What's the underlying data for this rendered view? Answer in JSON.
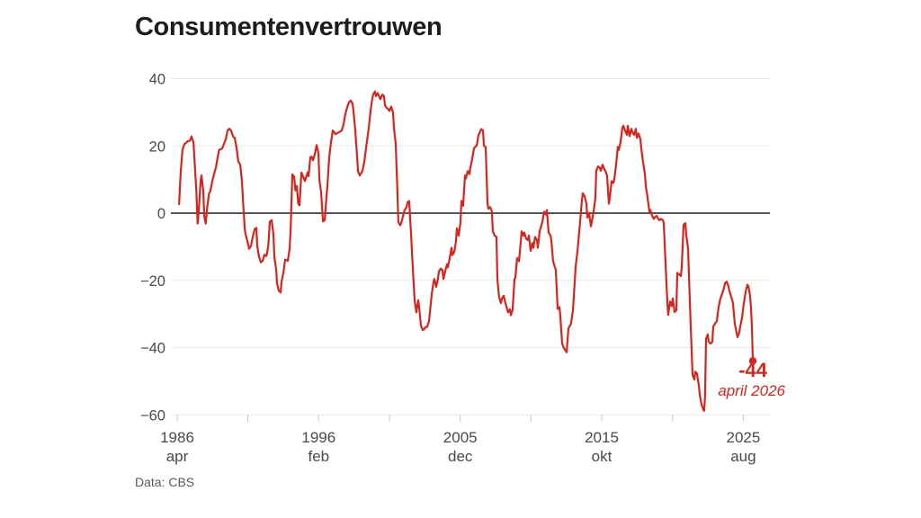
{
  "title": "Consumentenvertrouwen",
  "source": "Data: CBS",
  "annotation": {
    "value_label": "-44",
    "date_label": "april 2026"
  },
  "colors": {
    "line": "#d6251d",
    "grid": "#e8e8e8",
    "zero_line": "#1f1f1f",
    "tick": "#c9c9c9",
    "axis_text": "#4a4a4a",
    "title_text": "#1d1d1d",
    "source_text": "#5a5a5a"
  },
  "chart_data": {
    "type": "line",
    "title": "Consumentenvertrouwen",
    "source": "Data: CBS",
    "xlabel": "",
    "ylabel": "",
    "grid": true,
    "legend": "none",
    "y_axis": {
      "range": [
        -60,
        40
      ],
      "ticks": [
        40,
        20,
        0,
        -20,
        -40,
        -60
      ],
      "labels": [
        "40",
        "20",
        "0",
        "−20",
        "−40",
        "−60"
      ],
      "zero_line": true
    },
    "x_axis": {
      "origin_year": 1986.29,
      "range_years": [
        1986.29,
        2026.29
      ],
      "tick_years": [
        1986.29,
        1991.2,
        1996.12,
        2001.04,
        2005.96,
        2010.87,
        2015.79,
        2020.71,
        2025.63
      ],
      "major_ticks": [
        {
          "t": 1986.29,
          "year": "1986",
          "month": "apr"
        },
        {
          "t": 1996.12,
          "year": "1996",
          "month": "feb"
        },
        {
          "t": 2005.96,
          "year": "2005",
          "month": "dec"
        },
        {
          "t": 2015.79,
          "year": "2015",
          "month": "okt"
        },
        {
          "t": 2025.63,
          "year": "2025",
          "month": "aug"
        }
      ]
    },
    "end_point": {
      "year": 2026.29,
      "value": -44,
      "label": "-44",
      "date": "april 2026"
    },
    "points": [
      [
        1986.42,
        2.7
      ],
      [
        1986.54,
        12.5
      ],
      [
        1986.66,
        18.8
      ],
      [
        1986.79,
        20.5
      ],
      [
        1986.92,
        21.0
      ],
      [
        1987.04,
        21.4
      ],
      [
        1987.17,
        21.5
      ],
      [
        1987.29,
        22.8
      ],
      [
        1987.42,
        21.0
      ],
      [
        1987.54,
        12.5
      ],
      [
        1987.63,
        6.0
      ],
      [
        1987.71,
        -3.1
      ],
      [
        1987.79,
        0.5
      ],
      [
        1987.92,
        9.8
      ],
      [
        1987.98,
        11.2
      ],
      [
        1988.1,
        6.7
      ],
      [
        1988.17,
        -1.0
      ],
      [
        1988.27,
        -3.1
      ],
      [
        1988.38,
        1.8
      ],
      [
        1988.5,
        5.8
      ],
      [
        1988.6,
        6.7
      ],
      [
        1988.73,
        9.5
      ],
      [
        1988.85,
        11.6
      ],
      [
        1988.98,
        13.5
      ],
      [
        1989.1,
        16.6
      ],
      [
        1989.2,
        18.8
      ],
      [
        1989.3,
        19.0
      ],
      [
        1989.42,
        19.3
      ],
      [
        1989.54,
        20.6
      ],
      [
        1989.67,
        22.0
      ],
      [
        1989.79,
        24.6
      ],
      [
        1989.92,
        25.1
      ],
      [
        1990.04,
        24.5
      ],
      [
        1990.17,
        22.8
      ],
      [
        1990.29,
        22.4
      ],
      [
        1990.42,
        19.3
      ],
      [
        1990.54,
        15.3
      ],
      [
        1990.67,
        14.4
      ],
      [
        1990.79,
        9.5
      ],
      [
        1990.85,
        4.6
      ],
      [
        1990.98,
        -4.4
      ],
      [
        1991.04,
        -6.2
      ],
      [
        1991.17,
        -8.4
      ],
      [
        1991.29,
        -10.6
      ],
      [
        1991.42,
        -9.7
      ],
      [
        1991.54,
        -7.1
      ],
      [
        1991.67,
        -4.8
      ],
      [
        1991.79,
        -4.4
      ],
      [
        1991.85,
        -9.7
      ],
      [
        1991.98,
        -13.0
      ],
      [
        1992.1,
        -14.6
      ],
      [
        1992.23,
        -14.2
      ],
      [
        1992.35,
        -12.4
      ],
      [
        1992.48,
        -12.8
      ],
      [
        1992.54,
        -11.9
      ],
      [
        1992.63,
        -9.3
      ],
      [
        1992.73,
        -2.6
      ],
      [
        1992.85,
        -2.1
      ],
      [
        1992.98,
        -6.2
      ],
      [
        1993.04,
        -12.9
      ],
      [
        1993.17,
        -16.9
      ],
      [
        1993.23,
        -20.9
      ],
      [
        1993.35,
        -23.1
      ],
      [
        1993.48,
        -23.6
      ],
      [
        1993.54,
        -20.4
      ],
      [
        1993.67,
        -17.8
      ],
      [
        1993.79,
        -13.8
      ],
      [
        1993.85,
        -13.9
      ],
      [
        1993.98,
        -14.2
      ],
      [
        1994.1,
        -10.6
      ],
      [
        1994.17,
        -5.3
      ],
      [
        1994.29,
        11.5
      ],
      [
        1994.42,
        10.8
      ],
      [
        1994.5,
        6.8
      ],
      [
        1994.6,
        8.1
      ],
      [
        1994.7,
        2.8
      ],
      [
        1994.79,
        2.3
      ],
      [
        1994.92,
        12.1
      ],
      [
        1995.04,
        10.8
      ],
      [
        1995.17,
        9.5
      ],
      [
        1995.23,
        10.4
      ],
      [
        1995.35,
        12.1
      ],
      [
        1995.42,
        11.0
      ],
      [
        1995.54,
        16.6
      ],
      [
        1995.63,
        16.8
      ],
      [
        1995.73,
        15.7
      ],
      [
        1995.85,
        17.5
      ],
      [
        1995.98,
        20.2
      ],
      [
        1996.1,
        18.0
      ],
      [
        1996.17,
        9.9
      ],
      [
        1996.29,
        6.3
      ],
      [
        1996.42,
        -2.5
      ],
      [
        1996.54,
        -2.1
      ],
      [
        1996.63,
        2.8
      ],
      [
        1996.73,
        8.1
      ],
      [
        1996.85,
        16.6
      ],
      [
        1996.98,
        21.1
      ],
      [
        1997.1,
        24.6
      ],
      [
        1997.29,
        23.5
      ],
      [
        1997.5,
        24.0
      ],
      [
        1997.73,
        24.6
      ],
      [
        1997.85,
        26.5
      ],
      [
        1997.98,
        29.5
      ],
      [
        1998.1,
        31.5
      ],
      [
        1998.23,
        33.0
      ],
      [
        1998.35,
        33.5
      ],
      [
        1998.48,
        32.6
      ],
      [
        1998.54,
        30.4
      ],
      [
        1998.66,
        25.0
      ],
      [
        1998.79,
        17.0
      ],
      [
        1998.85,
        12.5
      ],
      [
        1998.98,
        11.2
      ],
      [
        1999.1,
        12.1
      ],
      [
        1999.16,
        12.5
      ],
      [
        1999.29,
        15.2
      ],
      [
        1999.41,
        19.2
      ],
      [
        1999.48,
        21.4
      ],
      [
        1999.6,
        25.4
      ],
      [
        1999.73,
        30.4
      ],
      [
        1999.79,
        32.6
      ],
      [
        1999.91,
        35.3
      ],
      [
        2000.04,
        36.2
      ],
      [
        2000.1,
        34.8
      ],
      [
        2000.23,
        35.7
      ],
      [
        2000.35,
        34.4
      ],
      [
        2000.41,
        33.9
      ],
      [
        2000.54,
        35.3
      ],
      [
        2000.66,
        34.8
      ],
      [
        2000.73,
        32.1
      ],
      [
        2000.85,
        31.3
      ],
      [
        2000.98,
        30.8
      ],
      [
        2001.04,
        30.4
      ],
      [
        2001.16,
        31.7
      ],
      [
        2001.29,
        29.9
      ],
      [
        2001.35,
        25.4
      ],
      [
        2001.48,
        20.5
      ],
      [
        2001.6,
        5.4
      ],
      [
        2001.66,
        -2.7
      ],
      [
        2001.79,
        -3.6
      ],
      [
        2001.91,
        -2.2
      ],
      [
        2001.98,
        -0.9
      ],
      [
        2002.1,
        0.9
      ],
      [
        2002.23,
        1.8
      ],
      [
        2002.29,
        3.1
      ],
      [
        2002.41,
        3.6
      ],
      [
        2002.54,
        -6.0
      ],
      [
        2002.66,
        -16.0
      ],
      [
        2002.79,
        -26.0
      ],
      [
        2002.91,
        -29.5
      ],
      [
        2003.04,
        -25.9
      ],
      [
        2003.1,
        -28.0
      ],
      [
        2003.23,
        -33.5
      ],
      [
        2003.35,
        -34.8
      ],
      [
        2003.48,
        -34.4
      ],
      [
        2003.54,
        -33.9
      ],
      [
        2003.66,
        -33.9
      ],
      [
        2003.79,
        -32.1
      ],
      [
        2003.85,
        -29.5
      ],
      [
        2003.98,
        -24.1
      ],
      [
        2004.1,
        -20.5
      ],
      [
        2004.16,
        -19.6
      ],
      [
        2004.29,
        -21.9
      ],
      [
        2004.41,
        -19.6
      ],
      [
        2004.48,
        -17.4
      ],
      [
        2004.6,
        -16.5
      ],
      [
        2004.73,
        -17.0
      ],
      [
        2004.79,
        -19.6
      ],
      [
        2004.91,
        -17.4
      ],
      [
        2005.04,
        -15.2
      ],
      [
        2005.1,
        -16.1
      ],
      [
        2005.23,
        -13.4
      ],
      [
        2005.35,
        -10.3
      ],
      [
        2005.41,
        -12.5
      ],
      [
        2005.54,
        -11.6
      ],
      [
        2005.66,
        -8.5
      ],
      [
        2005.73,
        -4.5
      ],
      [
        2005.85,
        -6.7
      ],
      [
        2005.98,
        -2.7
      ],
      [
        2006.04,
        3.6
      ],
      [
        2006.16,
        2.2
      ],
      [
        2006.29,
        11.2
      ],
      [
        2006.35,
        10.3
      ],
      [
        2006.48,
        12.5
      ],
      [
        2006.6,
        11.6
      ],
      [
        2006.66,
        13.4
      ],
      [
        2006.79,
        16.1
      ],
      [
        2006.91,
        19.2
      ],
      [
        2006.98,
        19.6
      ],
      [
        2007.1,
        20.1
      ],
      [
        2007.23,
        23.2
      ],
      [
        2007.29,
        23.7
      ],
      [
        2007.41,
        25.0
      ],
      [
        2007.54,
        24.6
      ],
      [
        2007.6,
        20.1
      ],
      [
        2007.73,
        19.6
      ],
      [
        2007.85,
        3.1
      ],
      [
        2007.91,
        1.3
      ],
      [
        2008.04,
        1.8
      ],
      [
        2008.16,
        0.4
      ],
      [
        2008.23,
        -5.4
      ],
      [
        2008.35,
        -6.7
      ],
      [
        2008.48,
        -7.1
      ],
      [
        2008.54,
        -19.6
      ],
      [
        2008.66,
        -25.0
      ],
      [
        2008.79,
        -26.8
      ],
      [
        2008.85,
        -25.4
      ],
      [
        2008.98,
        -24.6
      ],
      [
        2009.1,
        -26.8
      ],
      [
        2009.16,
        -27.7
      ],
      [
        2009.29,
        -29.5
      ],
      [
        2009.41,
        -28.6
      ],
      [
        2009.48,
        -30.4
      ],
      [
        2009.6,
        -28.6
      ],
      [
        2009.73,
        -19.6
      ],
      [
        2009.79,
        -19.2
      ],
      [
        2009.91,
        -13.4
      ],
      [
        2010.04,
        -14.3
      ],
      [
        2010.1,
        -11.6
      ],
      [
        2010.23,
        -5.4
      ],
      [
        2010.35,
        -6.7
      ],
      [
        2010.41,
        -5.8
      ],
      [
        2010.54,
        -7.6
      ],
      [
        2010.66,
        -8.0
      ],
      [
        2010.73,
        -6.7
      ],
      [
        2010.85,
        -11.2
      ],
      [
        2010.98,
        -8.9
      ],
      [
        2011.04,
        -10.3
      ],
      [
        2011.16,
        -7.1
      ],
      [
        2011.29,
        -8.0
      ],
      [
        2011.35,
        -10.3
      ],
      [
        2011.48,
        -5.4
      ],
      [
        2011.6,
        -3.6
      ],
      [
        2011.66,
        -2.7
      ],
      [
        2011.79,
        0.4
      ],
      [
        2011.91,
        -0.4
      ],
      [
        2011.98,
        0.9
      ],
      [
        2012.1,
        -5.8
      ],
      [
        2012.23,
        -6.7
      ],
      [
        2012.29,
        -8.0
      ],
      [
        2012.41,
        -14.3
      ],
      [
        2012.54,
        -16.1
      ],
      [
        2012.6,
        -17.0
      ],
      [
        2012.73,
        -28.5
      ],
      [
        2012.85,
        -28.0
      ],
      [
        2012.91,
        -30.3
      ],
      [
        2013.04,
        -38.8
      ],
      [
        2013.16,
        -40.1
      ],
      [
        2013.35,
        -41.4
      ],
      [
        2013.48,
        -34.3
      ],
      [
        2013.66,
        -32.9
      ],
      [
        2013.79,
        -28.9
      ],
      [
        2013.85,
        -24.9
      ],
      [
        2013.98,
        -16.0
      ],
      [
        2014.1,
        -11.5
      ],
      [
        2014.29,
        -2.6
      ],
      [
        2014.41,
        3.7
      ],
      [
        2014.48,
        5.9
      ],
      [
        2014.6,
        5.0
      ],
      [
        2014.73,
        2.8
      ],
      [
        2014.79,
        -1.3
      ],
      [
        2014.91,
        0.1
      ],
      [
        2015.04,
        -3.9
      ],
      [
        2015.1,
        -2.6
      ],
      [
        2015.23,
        0.5
      ],
      [
        2015.35,
        4.6
      ],
      [
        2015.41,
        12.6
      ],
      [
        2015.54,
        13.9
      ],
      [
        2015.66,
        13.5
      ],
      [
        2015.73,
        12.6
      ],
      [
        2015.85,
        14.4
      ],
      [
        2015.98,
        13.0
      ],
      [
        2016.04,
        12.6
      ],
      [
        2016.16,
        11.3
      ],
      [
        2016.29,
        2.8
      ],
      [
        2016.35,
        4.6
      ],
      [
        2016.48,
        9.5
      ],
      [
        2016.6,
        9.0
      ],
      [
        2016.66,
        9.9
      ],
      [
        2016.79,
        14.4
      ],
      [
        2016.91,
        19.7
      ],
      [
        2016.98,
        18.8
      ],
      [
        2017.1,
        21.1
      ],
      [
        2017.23,
        25.5
      ],
      [
        2017.29,
        26.0
      ],
      [
        2017.41,
        24.6
      ],
      [
        2017.54,
        23.3
      ],
      [
        2017.6,
        26.0
      ],
      [
        2017.73,
        22.9
      ],
      [
        2017.85,
        25.1
      ],
      [
        2017.91,
        24.2
      ],
      [
        2018.04,
        23.3
      ],
      [
        2018.16,
        25.1
      ],
      [
        2018.23,
        22.4
      ],
      [
        2018.35,
        23.7
      ],
      [
        2018.48,
        22.0
      ],
      [
        2018.54,
        19.3
      ],
      [
        2018.66,
        15.3
      ],
      [
        2018.79,
        11.7
      ],
      [
        2018.85,
        8.1
      ],
      [
        2018.98,
        4.6
      ],
      [
        2019.1,
        0.5
      ],
      [
        2019.16,
        1.0
      ],
      [
        2019.29,
        -0.8
      ],
      [
        2019.41,
        -1.7
      ],
      [
        2019.48,
        -1.2
      ],
      [
        2019.6,
        -0.8
      ],
      [
        2019.73,
        -1.7
      ],
      [
        2019.79,
        -2.1
      ],
      [
        2019.91,
        -1.7
      ],
      [
        2020.04,
        -2.1
      ],
      [
        2020.1,
        -3.0
      ],
      [
        2020.23,
        -15.1
      ],
      [
        2020.35,
        -26.7
      ],
      [
        2020.41,
        -30.3
      ],
      [
        2020.54,
        -26.3
      ],
      [
        2020.66,
        -27.6
      ],
      [
        2020.73,
        -25.4
      ],
      [
        2020.85,
        -29.4
      ],
      [
        2020.98,
        -28.9
      ],
      [
        2021.04,
        -17.8
      ],
      [
        2021.16,
        -18.2
      ],
      [
        2021.29,
        -18.7
      ],
      [
        2021.35,
        -16.0
      ],
      [
        2021.48,
        -3.5
      ],
      [
        2021.6,
        -3.0
      ],
      [
        2021.66,
        -6.2
      ],
      [
        2021.79,
        -10.6
      ],
      [
        2021.91,
        -25.4
      ],
      [
        2021.98,
        -33.8
      ],
      [
        2022.1,
        -48.1
      ],
      [
        2022.23,
        -49.5
      ],
      [
        2022.29,
        -47.2
      ],
      [
        2022.41,
        -47.7
      ],
      [
        2022.54,
        -51.3
      ],
      [
        2022.6,
        -53.9
      ],
      [
        2022.73,
        -57.0
      ],
      [
        2022.85,
        -58.4
      ],
      [
        2022.91,
        -58.8
      ],
      [
        2022.97,
        -54.4
      ],
      [
        2023.04,
        -37.4
      ],
      [
        2023.16,
        -36.1
      ],
      [
        2023.23,
        -38.3
      ],
      [
        2023.35,
        -38.8
      ],
      [
        2023.48,
        -38.3
      ],
      [
        2023.54,
        -33.8
      ],
      [
        2023.66,
        -32.9
      ],
      [
        2023.79,
        -32.1
      ],
      [
        2023.91,
        -28.0
      ],
      [
        2024.04,
        -25.4
      ],
      [
        2024.16,
        -24.0
      ],
      [
        2024.29,
        -22.2
      ],
      [
        2024.35,
        -20.9
      ],
      [
        2024.48,
        -20.4
      ],
      [
        2024.6,
        -21.8
      ],
      [
        2024.66,
        -23.1
      ],
      [
        2024.79,
        -24.9
      ],
      [
        2024.91,
        -26.7
      ],
      [
        2024.98,
        -30.0
      ],
      [
        2025.04,
        -33.0
      ],
      [
        2025.16,
        -35.5
      ],
      [
        2025.23,
        -36.9
      ],
      [
        2025.35,
        -35.5
      ],
      [
        2025.41,
        -33.8
      ],
      [
        2025.54,
        -31.2
      ],
      [
        2025.66,
        -27.0
      ],
      [
        2025.79,
        -23.5
      ],
      [
        2025.91,
        -21.3
      ],
      [
        2025.98,
        -21.7
      ],
      [
        2026.04,
        -23.0
      ],
      [
        2026.1,
        -24.8
      ],
      [
        2026.16,
        -27.9
      ],
      [
        2026.23,
        -33.8
      ],
      [
        2026.29,
        -44.0
      ]
    ]
  }
}
